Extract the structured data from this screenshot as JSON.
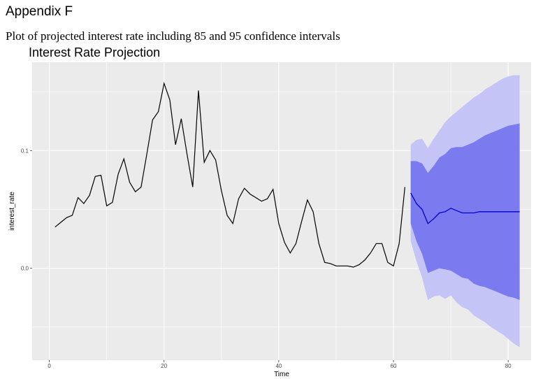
{
  "header": {
    "appendix": "Appendix F",
    "subtitle": "Plot of projected interest rate including 85 and 95 confidence intervals"
  },
  "chart_data": {
    "type": "line",
    "title": "Interest Rate Projection",
    "xlabel": "Time",
    "ylabel": "interest_rate",
    "xlim": [
      -3,
      84
    ],
    "ylim": [
      -0.078,
      0.175
    ],
    "x_ticks": [
      0,
      20,
      40,
      60,
      80
    ],
    "x_tick_labels": [
      "0",
      "20",
      "40",
      "60",
      "80"
    ],
    "y_ticks": [
      0.0,
      0.1
    ],
    "y_tick_labels": [
      "0.0",
      "0.1"
    ],
    "grid": true,
    "colors": {
      "panel": "#ebebeb",
      "grid": "#ffffff",
      "history": "#000000",
      "forecast": "#0000cc",
      "band95": "#c4c4f7",
      "band85": "#7b7bef"
    },
    "history": {
      "x": [
        1,
        2,
        3,
        4,
        5,
        6,
        7,
        8,
        9,
        10,
        11,
        12,
        13,
        14,
        15,
        16,
        17,
        18,
        19,
        20,
        21,
        22,
        23,
        24,
        25,
        26,
        27,
        28,
        29,
        30,
        31,
        32,
        33,
        34,
        35,
        36,
        37,
        38,
        39,
        40,
        41,
        42,
        43,
        44,
        45,
        46,
        47,
        48,
        49,
        50,
        51,
        52,
        53,
        54,
        55,
        56,
        57,
        58,
        59,
        60,
        61,
        62
      ],
      "y": [
        0.035,
        0.039,
        0.043,
        0.045,
        0.06,
        0.055,
        0.062,
        0.078,
        0.079,
        0.053,
        0.056,
        0.08,
        0.093,
        0.073,
        0.065,
        0.069,
        0.097,
        0.126,
        0.133,
        0.157,
        0.143,
        0.105,
        0.127,
        0.097,
        0.069,
        0.151,
        0.09,
        0.1,
        0.092,
        0.066,
        0.045,
        0.038,
        0.059,
        0.068,
        0.063,
        0.06,
        0.057,
        0.059,
        0.067,
        0.038,
        0.022,
        0.013,
        0.021,
        0.04,
        0.058,
        0.048,
        0.021,
        0.005,
        0.004,
        0.002,
        0.002,
        0.002,
        0.001,
        0.003,
        0.007,
        0.013,
        0.021,
        0.021,
        0.005,
        0.002,
        0.021,
        0.069
      ]
    },
    "forecast": {
      "x": [
        63,
        64,
        65,
        66,
        67,
        68,
        69,
        70,
        71,
        72,
        73,
        74,
        75,
        76,
        77,
        78,
        79,
        80,
        81,
        82
      ],
      "mean": [
        0.064,
        0.055,
        0.05,
        0.038,
        0.042,
        0.047,
        0.048,
        0.051,
        0.049,
        0.047,
        0.047,
        0.047,
        0.048,
        0.048,
        0.048,
        0.048,
        0.048,
        0.048,
        0.048,
        0.048
      ],
      "lo85": [
        0.038,
        0.023,
        0.012,
        -0.004,
        -0.002,
        0.0,
        -0.001,
        -0.002,
        -0.005,
        -0.008,
        -0.009,
        -0.013,
        -0.015,
        -0.016,
        -0.018,
        -0.02,
        -0.022,
        -0.024,
        -0.025,
        -0.027
      ],
      "hi85": [
        0.091,
        0.091,
        0.089,
        0.081,
        0.087,
        0.094,
        0.097,
        0.102,
        0.103,
        0.103,
        0.105,
        0.107,
        0.11,
        0.113,
        0.115,
        0.117,
        0.119,
        0.121,
        0.122,
        0.123
      ],
      "lo95": [
        0.023,
        0.006,
        -0.008,
        -0.027,
        -0.024,
        -0.023,
        -0.026,
        -0.023,
        -0.029,
        -0.033,
        -0.035,
        -0.04,
        -0.043,
        -0.046,
        -0.05,
        -0.053,
        -0.056,
        -0.06,
        -0.064,
        -0.067
      ],
      "hi95": [
        0.105,
        0.109,
        0.11,
        0.102,
        0.11,
        0.117,
        0.124,
        0.129,
        0.133,
        0.137,
        0.141,
        0.145,
        0.148,
        0.152,
        0.155,
        0.158,
        0.161,
        0.163,
        0.164,
        0.164
      ]
    }
  }
}
